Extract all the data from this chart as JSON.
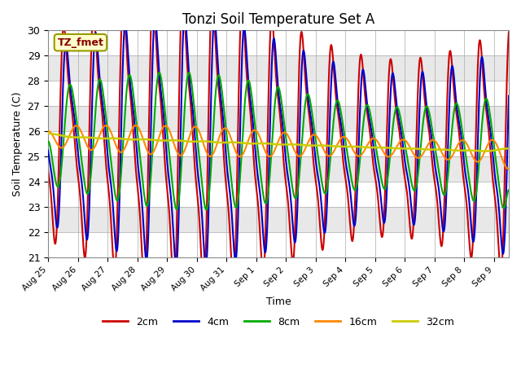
{
  "title": "Tonzi Soil Temperature Set A",
  "xlabel": "Time",
  "ylabel": "Soil Temperature (C)",
  "ylim": [
    21.0,
    30.0
  ],
  "yticks": [
    21.0,
    22.0,
    23.0,
    24.0,
    25.0,
    26.0,
    27.0,
    28.0,
    29.0,
    30.0
  ],
  "label_text": "TZ_fmet",
  "line_colors": [
    "#cc0000",
    "#0000cc",
    "#00aa00",
    "#ff8800",
    "#cccc00"
  ],
  "line_labels": [
    "2cm",
    "4cm",
    "8cm",
    "16cm",
    "32cm"
  ],
  "n_days": 15.5,
  "samples_per_day": 288,
  "base_temp": 25.8,
  "background_color": "#ffffff",
  "xtick_labels": [
    "Aug 25",
    "Aug 26",
    "Aug 27",
    "Aug 28",
    "Aug 29",
    "Aug 30",
    "Aug 31",
    "Sep 1",
    "Sep 2",
    "Sep 3",
    "Sep 4",
    "Sep 5",
    "Sep 6",
    "Sep 7",
    "Sep 8",
    "Sep 9"
  ],
  "xtick_positions": [
    0,
    1,
    2,
    3,
    4,
    5,
    6,
    7,
    8,
    9,
    10,
    11,
    12,
    13,
    14,
    15
  ]
}
